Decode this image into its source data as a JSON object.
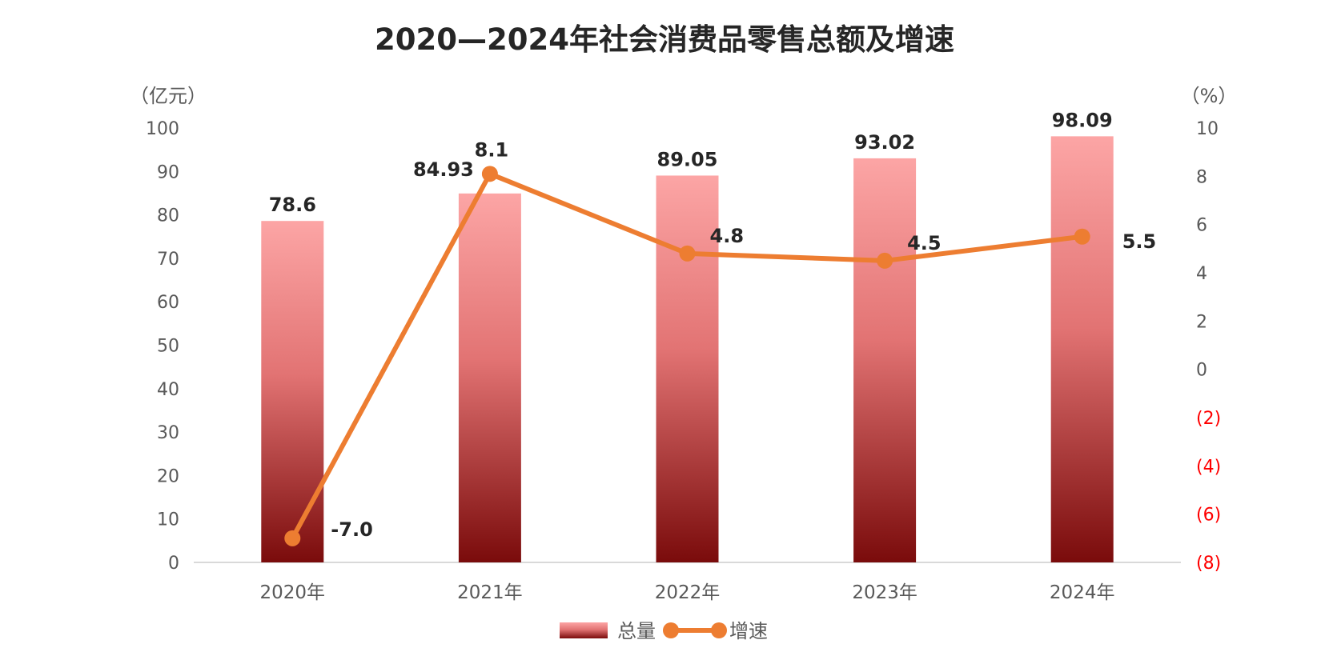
{
  "chart_data": {
    "type": "bar+line",
    "title": "2020—2024年社会消费品零售总额及增速",
    "categories": [
      "2020年",
      "2021年",
      "2022年",
      "2023年",
      "2024年"
    ],
    "series": [
      {
        "name": "总量",
        "type": "bar",
        "axis": "left",
        "values": [
          78.6,
          84.93,
          89.05,
          93.02,
          98.09
        ],
        "labels": [
          "78.6",
          "84.93",
          "89.05",
          "93.02",
          "98.09"
        ],
        "color": "#c0392b"
      },
      {
        "name": "增速",
        "type": "line",
        "axis": "right",
        "values": [
          -7.0,
          8.1,
          4.8,
          4.5,
          5.5
        ],
        "labels": [
          "-7.0",
          "8.1",
          "4.8",
          "4.5",
          "5.5"
        ],
        "color": "#ed7d31"
      }
    ],
    "left_axis": {
      "unit": "（亿元）",
      "ylim": [
        0,
        100
      ],
      "ticks": [
        "0",
        "10",
        "20",
        "30",
        "40",
        "50",
        "60",
        "70",
        "80",
        "90",
        "100"
      ]
    },
    "right_axis": {
      "unit": "（%）",
      "ylim": [
        -8,
        10
      ],
      "ticks": [
        "(8)",
        "(6)",
        "(4)",
        "(2)",
        "0",
        "2",
        "4",
        "6",
        "8",
        "10"
      ],
      "negative_color": "#ff0000"
    },
    "legend": {
      "position": "bottom",
      "items": [
        "总量",
        "增速"
      ]
    },
    "grid": false
  }
}
